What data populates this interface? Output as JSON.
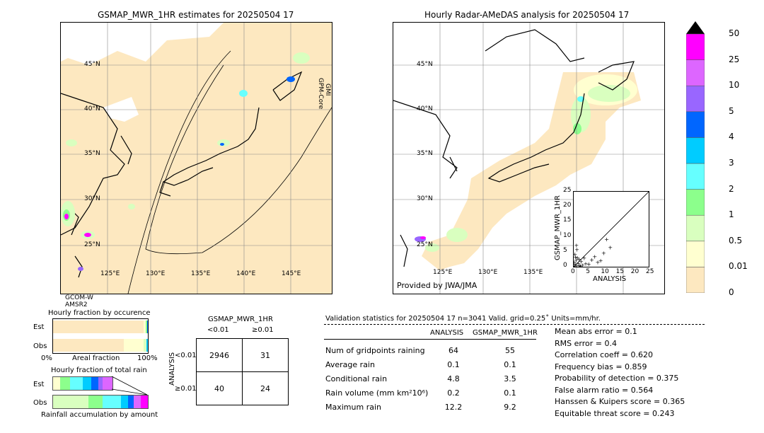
{
  "left_map": {
    "title": "GSMAP_MWR_1HR estimates for 20250504 17",
    "lat_labels": [
      "45°N",
      "40°N",
      "35°N",
      "30°N",
      "25°N"
    ],
    "lon_labels": [
      "125°E",
      "130°E",
      "135°E",
      "140°E",
      "145°E"
    ],
    "side_label_1": "GPM-Core",
    "side_label_2": "GMI",
    "sat_label_1": "GCOM-W",
    "sat_label_2": "AMSR2"
  },
  "right_map": {
    "title": "Hourly Radar-AMeDAS analysis for 20250504 17",
    "lat_labels": [
      "45°N",
      "40°N",
      "35°N",
      "30°N",
      "25°N"
    ],
    "lon_labels": [
      "125°E",
      "130°E",
      "135°E"
    ],
    "credit": "Provided by JWA/JMA"
  },
  "scatter": {
    "ylabel": "GSMAP_MWR_1HR",
    "xlabel": "ANALYSIS",
    "ticks": [
      "0",
      "5",
      "10",
      "15",
      "20",
      "25"
    ],
    "points": [
      [
        0.3,
        0.2
      ],
      [
        0.5,
        0.8
      ],
      [
        1,
        0.3
      ],
      [
        1.5,
        1.2
      ],
      [
        2,
        0.5
      ],
      [
        0.8,
        2.2
      ],
      [
        1.2,
        3.1
      ],
      [
        2.5,
        1.8
      ],
      [
        3,
        0.6
      ],
      [
        0.4,
        4.2
      ],
      [
        1.8,
        2.6
      ],
      [
        4,
        1.1
      ],
      [
        5,
        0.9
      ],
      [
        6,
        2.3
      ],
      [
        7,
        3.4
      ],
      [
        8,
        1.5
      ],
      [
        9,
        2.1
      ],
      [
        10,
        4.6
      ],
      [
        11,
        9.2
      ],
      [
        12.2,
        6.5
      ],
      [
        0.2,
        1.5
      ],
      [
        0.6,
        3.3
      ],
      [
        1.1,
        5.8
      ],
      [
        0.9,
        7.2
      ],
      [
        2.2,
        0.2
      ],
      [
        3.5,
        2.9
      ]
    ]
  },
  "colorbar": {
    "labels": [
      "0",
      "0.01",
      "0.5",
      "1",
      "2",
      "3",
      "4",
      "5",
      "10",
      "25",
      "50"
    ],
    "colors": [
      "#fde8c0",
      "#ffffd0",
      "#d9ffbf",
      "#8cff8c",
      "#66ffff",
      "#00ccff",
      "#0066ff",
      "#9966ff",
      "#dd66ff",
      "#ff00ff",
      "#cc9933"
    ]
  },
  "occurrence": {
    "title": "Hourly fraction by occurence",
    "row_labels": [
      "Est",
      "Obs"
    ],
    "axis_left": "0%",
    "axis_mid": "Areal fraction",
    "axis_right": "100%"
  },
  "total_rain": {
    "title": "Hourly fraction of total rain",
    "row_labels": [
      "Est",
      "Obs"
    ],
    "axis_label": "Rainfall accumulation by amount"
  },
  "contingency": {
    "title": "GSMAP_MWR_1HR",
    "col_headers": [
      "<0.01",
      "≥0.01"
    ],
    "row_headers": [
      "<0.01",
      "≥0.01"
    ],
    "side_label": "ANALYSIS",
    "cells": [
      [
        "2946",
        "31"
      ],
      [
        "40",
        "24"
      ]
    ]
  },
  "validation": {
    "header": "Validation statistics for 20250504 17  n=3041 Valid. grid=0.25˚ Units=mm/hr.",
    "col_analysis": "ANALYSIS",
    "col_gsmap": "GSMAP_MWR_1HR",
    "rows": [
      {
        "label": "Num of gridpoints raining",
        "analysis": "64",
        "gsmap": "55"
      },
      {
        "label": "Average rain",
        "analysis": "0.1",
        "gsmap": "0.1"
      },
      {
        "label": "Conditional rain",
        "analysis": "4.8",
        "gsmap": "3.5"
      },
      {
        "label": "Rain volume (mm km²10⁶)",
        "analysis": "0.2",
        "gsmap": "0.1"
      },
      {
        "label": "Maximum rain",
        "analysis": "12.2",
        "gsmap": "9.2"
      }
    ],
    "scores": [
      "Mean abs error =    0.1",
      "RMS error =    0.4",
      "Correlation coeff =  0.620",
      "Frequency bias =  0.859",
      "Probability of detection =  0.375",
      "False alarm ratio =  0.564",
      "Hanssen & Kuipers score =  0.365",
      "Equitable threat score =  0.243"
    ]
  },
  "chart_data": [
    {
      "type": "scatter",
      "title": "",
      "xlabel": "ANALYSIS",
      "ylabel": "GSMAP_MWR_1HR",
      "xlim": [
        0,
        25
      ],
      "ylim": [
        0,
        25
      ],
      "x_ticks": [
        0,
        5,
        10,
        15,
        20,
        25
      ],
      "y_ticks": [
        0,
        5,
        10,
        15,
        20,
        25
      ]
    },
    {
      "type": "table",
      "title": "GSMAP_MWR_1HR",
      "columns": [
        "<0.01",
        "≥0.01"
      ],
      "rows": [
        "<0.01",
        "≥0.01"
      ],
      "values": [
        [
          2946,
          31
        ],
        [
          40,
          24
        ]
      ]
    },
    {
      "type": "bar",
      "title": "Hourly fraction by occurence",
      "categories": [
        "Est",
        "Obs"
      ],
      "series": [
        {
          "values": [
            0.96,
            0.89
          ]
        },
        {
          "values": [
            0.02,
            0.09
          ]
        },
        {
          "values": [
            0.01,
            0.01
          ]
        },
        {
          "values": [
            0.01,
            0.01
          ]
        }
      ]
    }
  ]
}
